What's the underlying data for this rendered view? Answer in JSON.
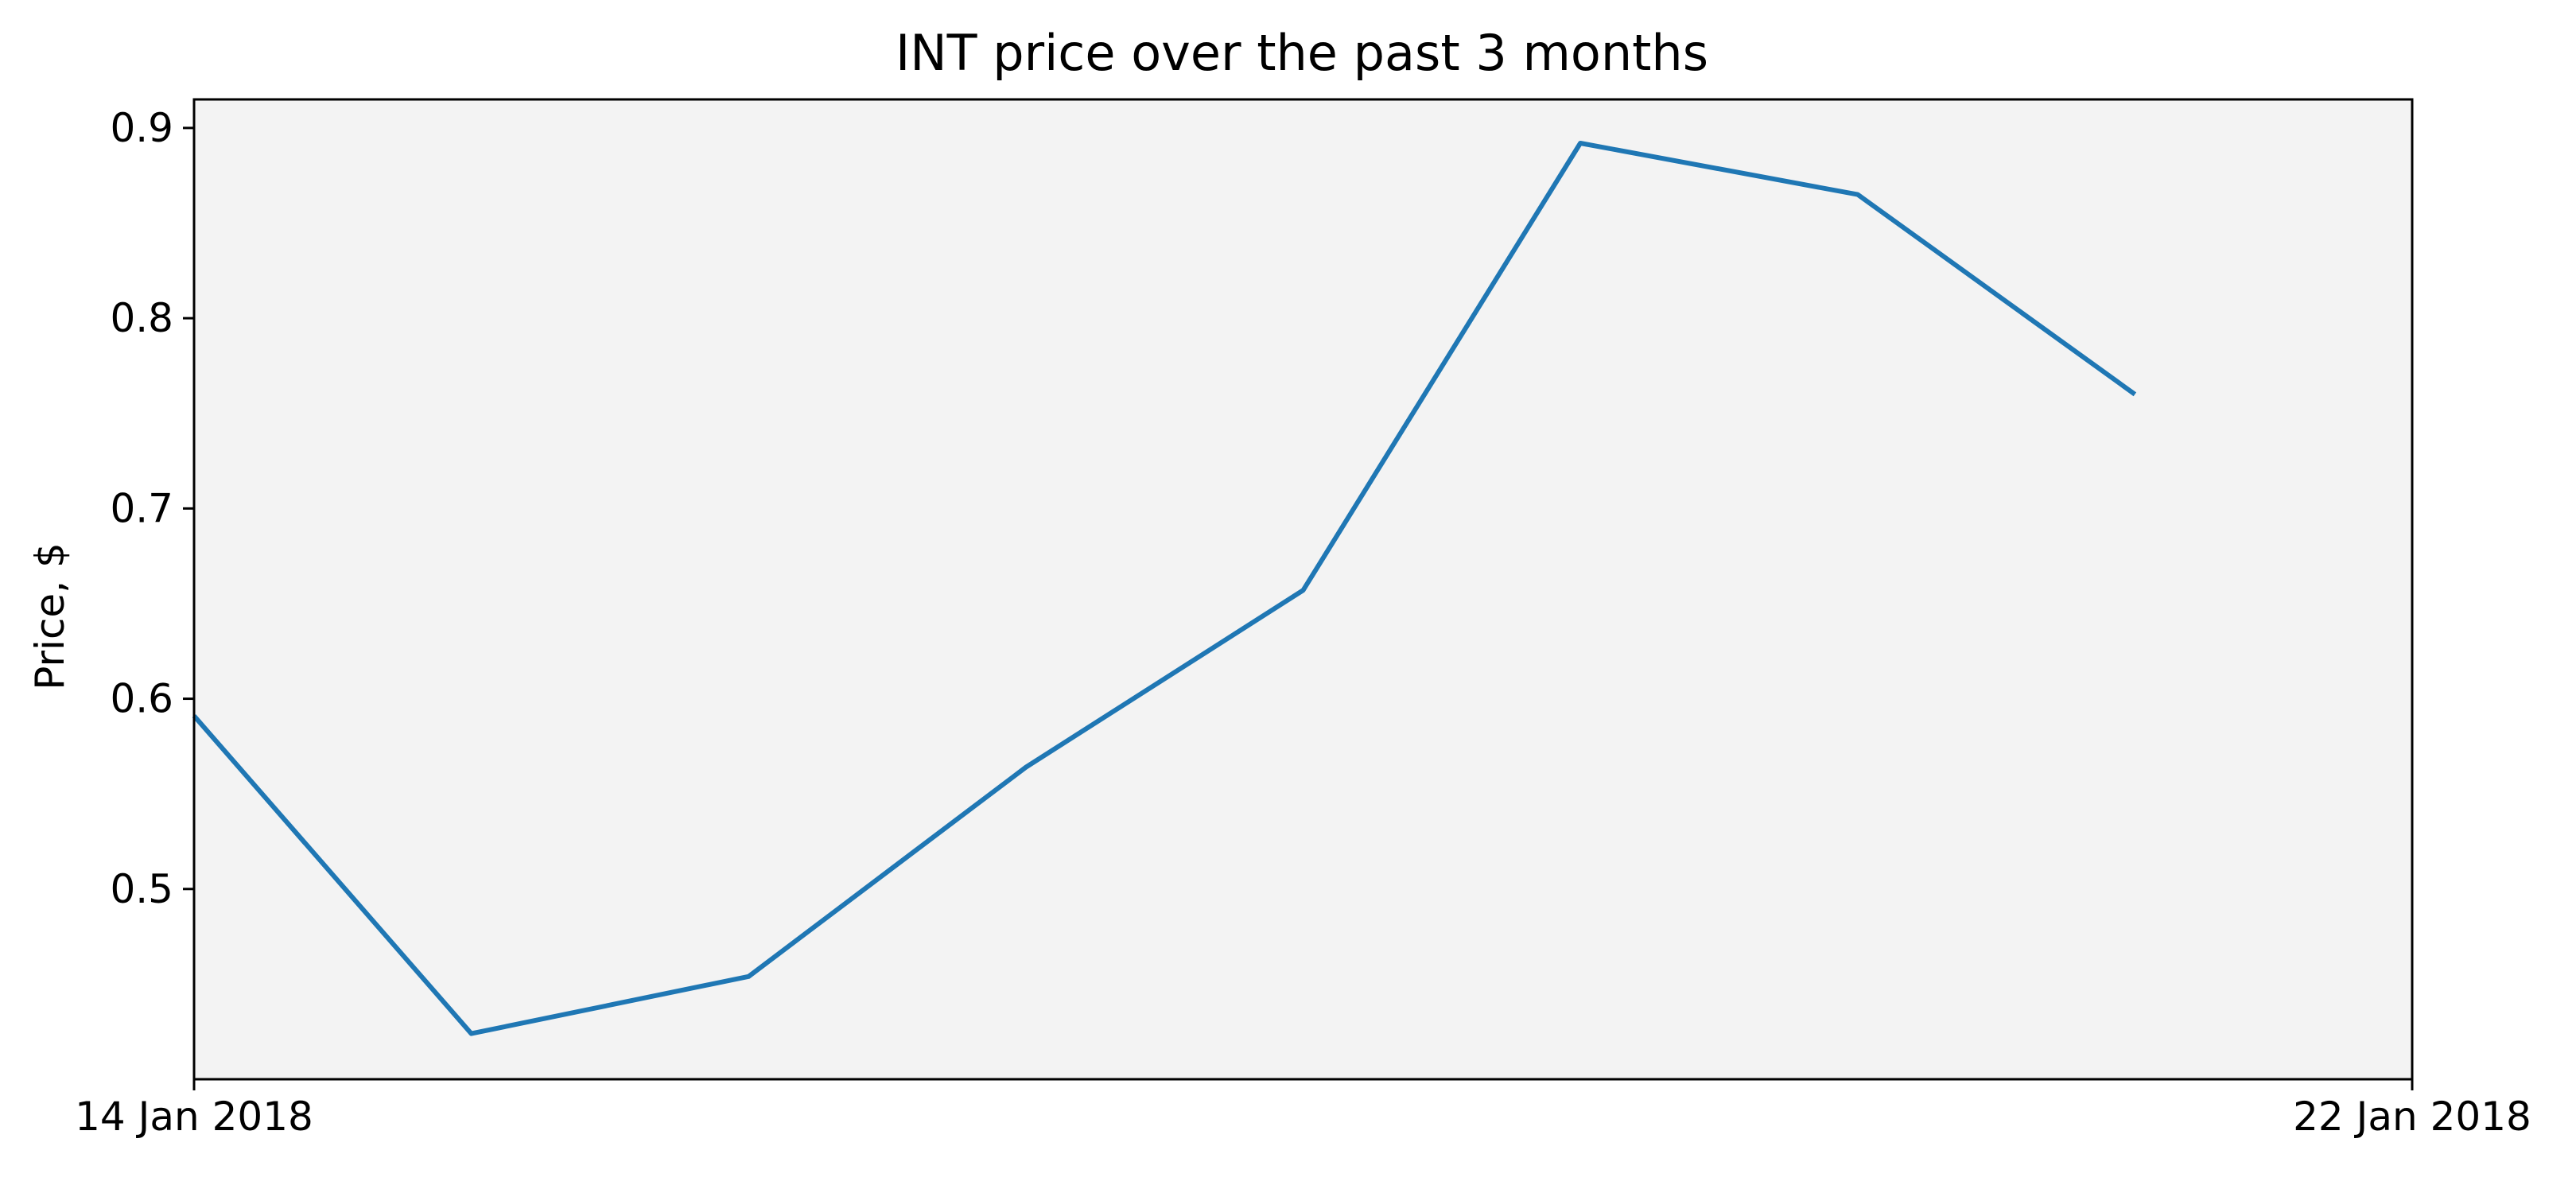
{
  "chart_data": {
    "type": "line",
    "title": "INT price over the past 3 months",
    "xlabel": "",
    "ylabel": "Price, $",
    "x_tick_labels": [
      "14 Jan 2018",
      "22 Jan 2018"
    ],
    "x_range": [
      "2018-01-14",
      "2018-01-22"
    ],
    "y_ticks": [
      0.5,
      0.6,
      0.7,
      0.8,
      0.9
    ],
    "y_tick_labels": [
      "0.5",
      "0.6",
      "0.7",
      "0.8",
      "0.9"
    ],
    "ylim": [
      0.4,
      0.915
    ],
    "grid": false,
    "legend": "none",
    "background_color": "#f3f3f3",
    "series": [
      {
        "color": "#1f77b4",
        "x": [
          "2018-01-14",
          "2018-01-15",
          "2018-01-16",
          "2018-01-17",
          "2018-01-18",
          "2018-01-19",
          "2018-01-20",
          "2018-01-21"
        ],
        "values": [
          0.591,
          0.424,
          0.454,
          0.564,
          0.657,
          0.892,
          0.865,
          0.76
        ]
      }
    ]
  }
}
